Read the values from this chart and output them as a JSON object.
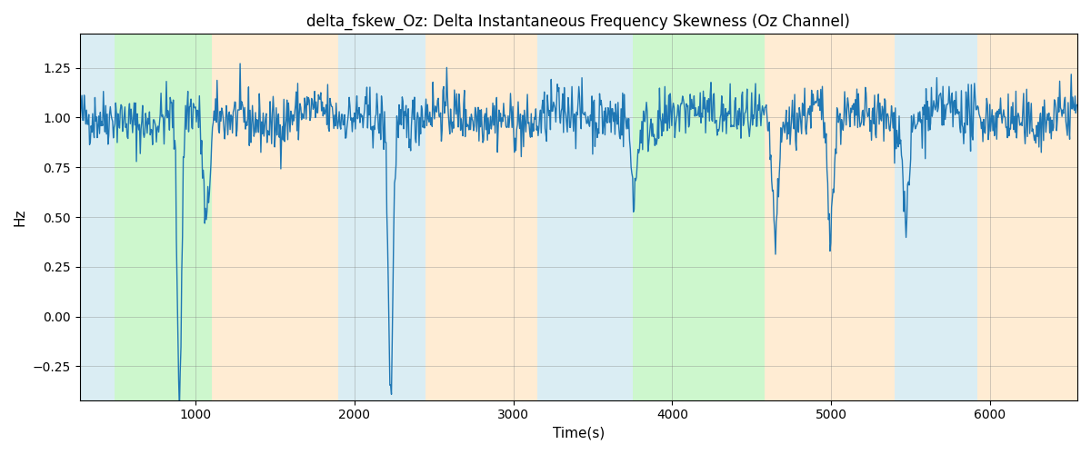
{
  "title": "delta_fskew_Oz: Delta Instantaneous Frequency Skewness (Oz Channel)",
  "xlabel": "Time(s)",
  "ylabel": "Hz",
  "xlim": [
    270,
    6550
  ],
  "ylim": [
    -0.42,
    1.42
  ],
  "yticks": [
    -0.25,
    0.0,
    0.25,
    0.5,
    0.75,
    1.0,
    1.25
  ],
  "xticks": [
    1000,
    2000,
    3000,
    4000,
    5000,
    6000
  ],
  "bg_bands": [
    {
      "xmin": 270,
      "xmax": 490,
      "color": "#add8e6",
      "alpha": 0.45
    },
    {
      "xmin": 490,
      "xmax": 1100,
      "color": "#90ee90",
      "alpha": 0.45
    },
    {
      "xmin": 1100,
      "xmax": 1900,
      "color": "#ffd59e",
      "alpha": 0.45
    },
    {
      "xmin": 1900,
      "xmax": 2450,
      "color": "#add8e6",
      "alpha": 0.45
    },
    {
      "xmin": 2450,
      "xmax": 3150,
      "color": "#ffd59e",
      "alpha": 0.45
    },
    {
      "xmin": 3150,
      "xmax": 3750,
      "color": "#add8e6",
      "alpha": 0.45
    },
    {
      "xmin": 3750,
      "xmax": 3900,
      "color": "#90ee90",
      "alpha": 0.45
    },
    {
      "xmin": 3900,
      "xmax": 4580,
      "color": "#90ee90",
      "alpha": 0.45
    },
    {
      "xmin": 4580,
      "xmax": 4800,
      "color": "#ffd59e",
      "alpha": 0.45
    },
    {
      "xmin": 4800,
      "xmax": 5400,
      "color": "#ffd59e",
      "alpha": 0.45
    },
    {
      "xmin": 5400,
      "xmax": 5920,
      "color": "#add8e6",
      "alpha": 0.45
    },
    {
      "xmin": 5920,
      "xmax": 6550,
      "color": "#ffd59e",
      "alpha": 0.45
    }
  ],
  "signal_color": "#1f77b4",
  "signal_linewidth": 1.0,
  "n_points": 1300,
  "noise_std": 0.07,
  "figsize": [
    12,
    5
  ],
  "dpi": 100
}
